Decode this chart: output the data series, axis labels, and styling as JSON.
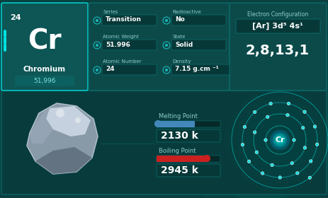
{
  "element_number": "24",
  "element_symbol": "Cr",
  "element_name": "Chromium",
  "element_weight_display": "51,996",
  "bg_color": "#0a4040",
  "bg_dark": "#063535",
  "teal_panel": "#0c4a4a",
  "teal_light": "#1ab8b8",
  "teal_bright": "#00e0e0",
  "teal_mid": "#0d7070",
  "teal_card": "#0e5555",
  "series_label": "Series",
  "series_value": "Transition",
  "radioactive_label": "Radioactive",
  "radioactive_value": "No",
  "atomic_weight_label": "Atomic Weight",
  "atomic_weight_value": "51.996",
  "state_label": "State",
  "state_value": "Solid",
  "atomic_number_label": "Atomic Number",
  "atomic_number_value": "24",
  "density_label": "Density",
  "density_value": "7.15 g.cm ⁻¹",
  "electron_config_label": "Electron Configuration",
  "electron_config_formula": "[Ar] 3d⁵ 4s¹",
  "electron_config_numbers": "2,8,13,1",
  "melting_label": "Melting Point",
  "melting_value": "2130 k",
  "boiling_label": "Boiling Point",
  "boiling_value": "2945 k",
  "melting_color": "#4488bb",
  "boiling_color": "#cc2020",
  "orbit_electrons": [
    2,
    8,
    13,
    1
  ],
  "white": "#ffffff",
  "light_teal": "#80e0e0",
  "text_dim": "#90cccc",
  "value_box_bg": "#073838",
  "accent_bar": "#0d6060"
}
